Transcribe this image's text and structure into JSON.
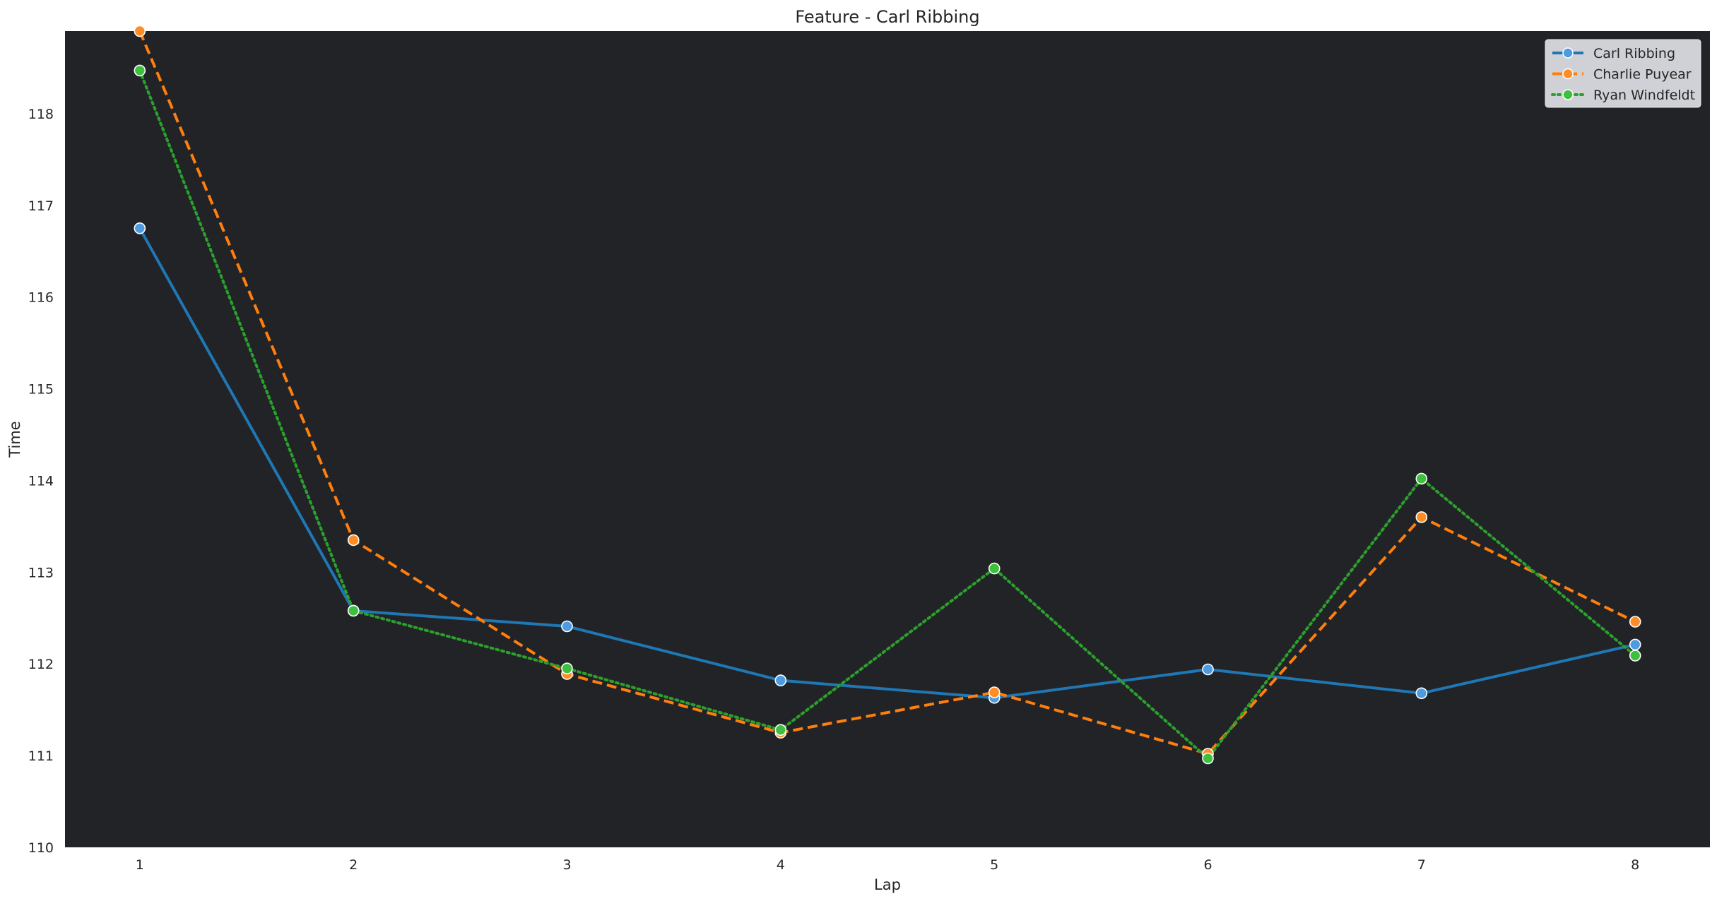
{
  "chart_data": {
    "type": "line",
    "title": "Feature - Carl Ribbing",
    "xlabel": "Lap",
    "ylabel": "Time",
    "x": [
      1,
      2,
      3,
      4,
      5,
      6,
      7,
      8
    ],
    "xticks": [
      "1",
      "2",
      "3",
      "4",
      "5",
      "6",
      "7",
      "8"
    ],
    "yticks": [
      "110",
      "111",
      "112",
      "113",
      "114",
      "115",
      "116",
      "117",
      "118"
    ],
    "xlim": [
      0.65,
      8.35
    ],
    "ylim": [
      110,
      118.9
    ],
    "grid": false,
    "legend_position": "top-right",
    "background": "#212327",
    "series": [
      {
        "name": "Carl Ribbing",
        "color": "#1f77b4",
        "marker_color": "#4d9be0",
        "linestyle": "solid",
        "values": [
          116.75,
          112.58,
          112.41,
          111.82,
          111.63,
          111.94,
          111.68,
          112.21
        ]
      },
      {
        "name": "Charlie Puyear",
        "color": "#ff7f0e",
        "marker_color": "#ff8c24",
        "linestyle": "dashed",
        "values": [
          118.9,
          113.35,
          111.89,
          111.25,
          111.69,
          111.02,
          113.6,
          112.46
        ]
      },
      {
        "name": "Ryan Windfeldt",
        "color": "#2ca02c",
        "marker_color": "#3fbf3f",
        "linestyle": "dotted",
        "values": [
          118.47,
          112.58,
          111.95,
          111.28,
          113.04,
          110.97,
          114.02,
          112.09
        ]
      }
    ]
  }
}
